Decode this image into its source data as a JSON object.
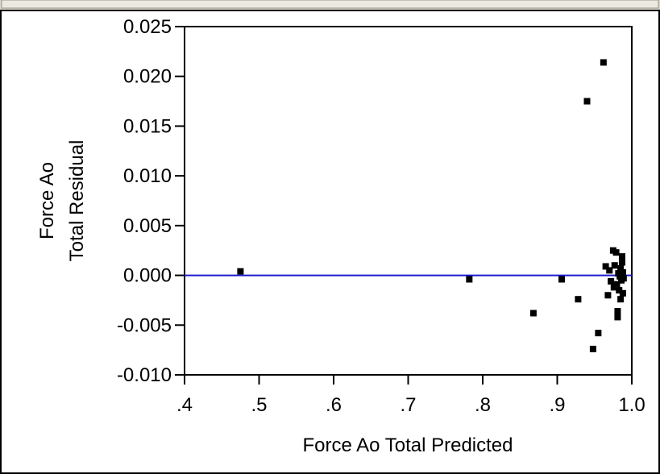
{
  "chart_data": {
    "type": "scatter",
    "title": "",
    "xlabel": "Force Ao Total Predicted",
    "ylabel_lines": [
      "Force Ao",
      "Total Residual"
    ],
    "xlim": [
      0.4,
      1.0
    ],
    "ylim": [
      -0.01,
      0.025
    ],
    "x_ticks": [
      {
        "value": 0.4,
        "label": ".4"
      },
      {
        "value": 0.5,
        "label": ".5"
      },
      {
        "value": 0.6,
        "label": ".6"
      },
      {
        "value": 0.7,
        "label": ".7"
      },
      {
        "value": 0.8,
        "label": ".8"
      },
      {
        "value": 0.9,
        "label": ".9"
      },
      {
        "value": 1.0,
        "label": "1.0"
      }
    ],
    "y_ticks": [
      {
        "value": 0.025,
        "label": "0.025"
      },
      {
        "value": 0.02,
        "label": "0.020"
      },
      {
        "value": 0.015,
        "label": "0.015"
      },
      {
        "value": 0.01,
        "label": "0.010"
      },
      {
        "value": 0.005,
        "label": "0.005"
      },
      {
        "value": 0.0,
        "label": "0.000"
      },
      {
        "value": -0.005,
        "label": "-0.005"
      },
      {
        "value": -0.01,
        "label": "-0.010"
      }
    ],
    "reference_line": {
      "y": 0.0,
      "color": "#1a1acd"
    },
    "points": [
      {
        "x": 0.475,
        "y": 0.0004
      },
      {
        "x": 0.782,
        "y": -0.0004
      },
      {
        "x": 0.868,
        "y": -0.0038
      },
      {
        "x": 0.906,
        "y": -0.0004
      },
      {
        "x": 0.928,
        "y": -0.0024
      },
      {
        "x": 0.94,
        "y": 0.0175
      },
      {
        "x": 0.948,
        "y": -0.0074
      },
      {
        "x": 0.955,
        "y": -0.0058
      },
      {
        "x": 0.962,
        "y": 0.0214
      },
      {
        "x": 0.965,
        "y": 0.0009
      },
      {
        "x": 0.968,
        "y": -0.002
      },
      {
        "x": 0.97,
        "y": 0.0005
      },
      {
        "x": 0.972,
        "y": -0.0006
      },
      {
        "x": 0.975,
        "y": 0.0025
      },
      {
        "x": 0.976,
        "y": -0.0012
      },
      {
        "x": 0.977,
        "y": 0.001
      },
      {
        "x": 0.979,
        "y": 0.0023
      },
      {
        "x": 0.98,
        "y": -0.0009
      },
      {
        "x": 0.981,
        "y": -0.0036
      },
      {
        "x": 0.981,
        "y": -0.0042
      },
      {
        "x": 0.982,
        "y": 0.0002
      },
      {
        "x": 0.983,
        "y": -0.0015
      },
      {
        "x": 0.984,
        "y": -0.0001
      },
      {
        "x": 0.985,
        "y": -0.0024
      },
      {
        "x": 0.985,
        "y": 0.0007
      },
      {
        "x": 0.986,
        "y": -0.0005
      },
      {
        "x": 0.987,
        "y": 0.0019
      },
      {
        "x": 0.987,
        "y": 0.0013
      },
      {
        "x": 0.988,
        "y": -0.0018
      },
      {
        "x": 0.988,
        "y": 0.0003
      },
      {
        "x": 0.989,
        "y": -0.0003
      }
    ],
    "marker_color": "#000000",
    "grid": false
  }
}
